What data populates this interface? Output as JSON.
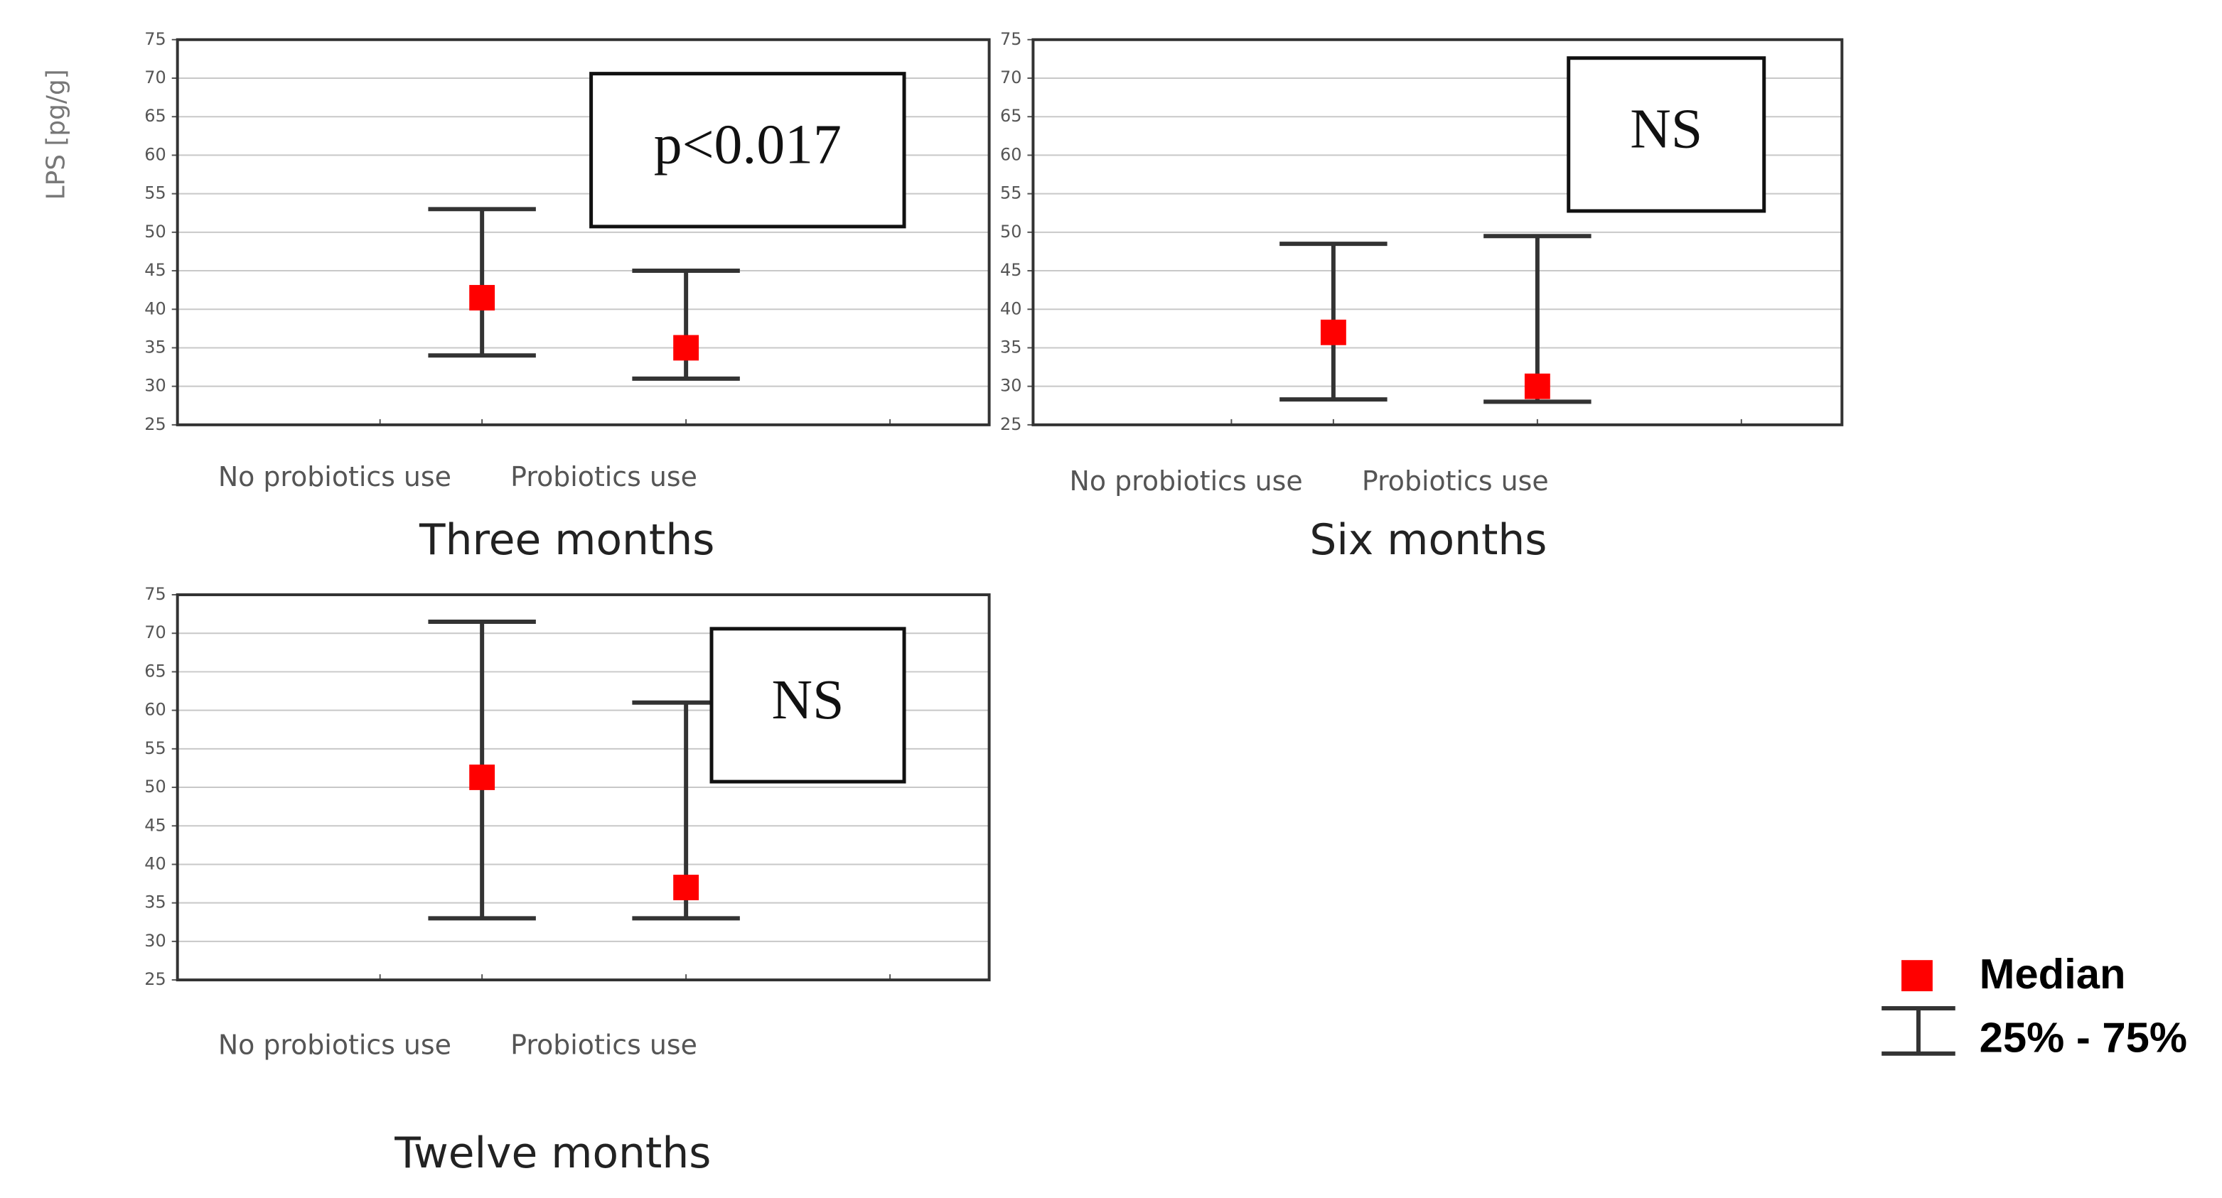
{
  "chart_data": [
    {
      "type": "errorbar",
      "title": "Three months",
      "ylabel": "LPS [pg/g]",
      "annotation": "p<0.017",
      "categories": [
        "No probiotics use",
        "Probiotics use"
      ],
      "median": [
        41.5,
        35
      ],
      "q1": [
        34,
        31
      ],
      "q3": [
        53,
        45
      ],
      "ylim": [
        25,
        75
      ],
      "yticks": [
        25,
        30,
        35,
        40,
        45,
        50,
        55,
        60,
        65,
        70,
        75
      ],
      "grid": true,
      "median_color": "#ff0000",
      "range_color": "#333333"
    },
    {
      "type": "errorbar",
      "title": "Six months",
      "annotation": "NS",
      "categories": [
        "No probiotics use",
        "Probiotics use"
      ],
      "median": [
        37,
        30
      ],
      "q1": [
        28.3,
        28
      ],
      "q3": [
        48.5,
        49.5
      ],
      "ylim": [
        25,
        75
      ],
      "yticks": [
        25,
        30,
        35,
        40,
        45,
        50,
        55,
        60,
        65,
        70,
        75
      ],
      "grid": true,
      "median_color": "#ff0000",
      "range_color": "#333333"
    },
    {
      "type": "errorbar",
      "title": "Twelve months",
      "annotation": "NS",
      "categories": [
        "No probiotics use",
        "Probiotics use"
      ],
      "median": [
        51.3,
        37
      ],
      "q1": [
        33,
        33
      ],
      "q3": [
        71.5,
        61
      ],
      "ylim": [
        25,
        75
      ],
      "yticks": [
        25,
        30,
        35,
        40,
        45,
        50,
        55,
        60,
        65,
        70,
        75
      ],
      "grid": true,
      "median_color": "#ff0000",
      "range_color": "#333333"
    }
  ],
  "legend": {
    "median": "Median",
    "range": "25% - 75%"
  }
}
